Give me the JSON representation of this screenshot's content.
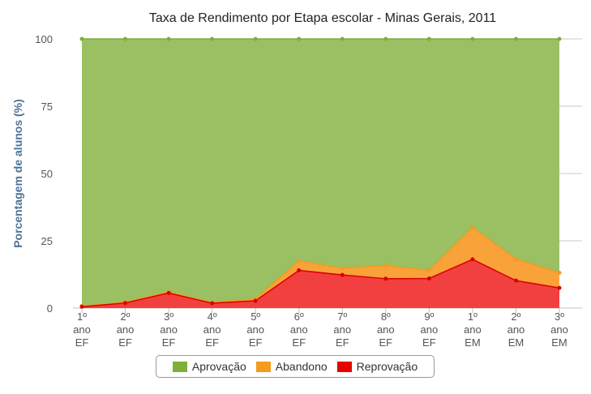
{
  "chart_data": {
    "type": "area",
    "stacked": true,
    "title": "Taxa de Rendimento por Etapa escolar - Minas Gerais, 2011",
    "ylabel": "Porcentagem de alunos (%)",
    "ylim": [
      0,
      100
    ],
    "yticks": [
      0,
      25,
      50,
      75,
      100
    ],
    "grid": true,
    "legend_position": "bottom",
    "categories": [
      [
        "1º",
        "ano",
        "EF"
      ],
      [
        "2º",
        "ano",
        "EF"
      ],
      [
        "3º",
        "ano",
        "EF"
      ],
      [
        "4º",
        "ano",
        "EF"
      ],
      [
        "5º",
        "ano",
        "EF"
      ],
      [
        "6º",
        "ano",
        "EF"
      ],
      [
        "7º",
        "ano",
        "EF"
      ],
      [
        "8º",
        "ano",
        "EF"
      ],
      [
        "9º",
        "ano",
        "EF"
      ],
      [
        "1º",
        "ano",
        "EM"
      ],
      [
        "2º",
        "ano",
        "EM"
      ],
      [
        "3º",
        "ano",
        "EM"
      ]
    ],
    "series": [
      {
        "name": "Aprovação",
        "color": "#9bbf63",
        "marker": "#7fae3a",
        "values": [
          99.2,
          97.8,
          94.0,
          97.9,
          96.6,
          82.5,
          85.2,
          84.2,
          86.0,
          70.1,
          81.8,
          86.9
        ]
      },
      {
        "name": "Abandono",
        "color": "#f9a23a",
        "marker": "#f39c1d",
        "values": [
          0.3,
          0.3,
          0.4,
          0.3,
          0.7,
          3.5,
          2.5,
          4.9,
          3.0,
          11.8,
          8.0,
          5.6
        ]
      },
      {
        "name": "Reprovação",
        "color": "#f24040",
        "marker": "#d80000",
        "values": [
          0.5,
          1.9,
          5.6,
          1.8,
          2.7,
          14.0,
          12.3,
          10.9,
          11.0,
          18.1,
          10.2,
          7.5
        ]
      }
    ]
  }
}
